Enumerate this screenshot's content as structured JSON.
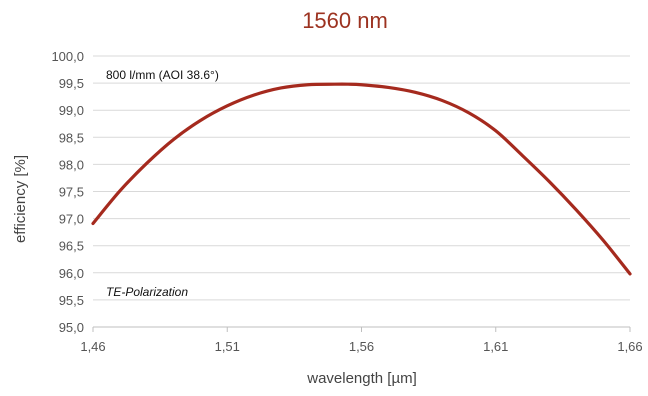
{
  "chart_data": {
    "type": "line",
    "title": "1560 nm",
    "xlabel": "wavelength [µm]",
    "ylabel": "efficiency [%]",
    "annotations": [
      "800 l/mm (AOI 38.6°)",
      "TE-Polarization"
    ],
    "xlim": [
      1.46,
      1.66
    ],
    "ylim": [
      95.0,
      100.0
    ],
    "x_ticks": [
      1.46,
      1.51,
      1.56,
      1.61,
      1.66
    ],
    "x_tick_labels": [
      "1,46",
      "1,51",
      "1,56",
      "1,61",
      "1,66"
    ],
    "y_ticks": [
      95.0,
      95.5,
      96.0,
      96.5,
      97.0,
      97.5,
      98.0,
      98.5,
      99.0,
      99.5,
      100.0
    ],
    "y_tick_labels": [
      "95,0",
      "95,5",
      "96,0",
      "96,5",
      "97,0",
      "97,5",
      "98,0",
      "98,5",
      "99,0",
      "99,5",
      "100,0"
    ],
    "grid": "horizontal",
    "series": [
      {
        "color": "#a52a1e",
        "x": [
          1.46,
          1.47,
          1.48,
          1.49,
          1.5,
          1.51,
          1.52,
          1.53,
          1.54,
          1.55,
          1.555,
          1.56,
          1.57,
          1.58,
          1.59,
          1.6,
          1.61,
          1.62,
          1.63,
          1.64,
          1.65,
          1.66
        ],
        "y": [
          96.91,
          97.51,
          98.02,
          98.46,
          98.81,
          99.08,
          99.28,
          99.41,
          99.47,
          99.48,
          99.48,
          99.47,
          99.42,
          99.33,
          99.18,
          98.95,
          98.62,
          98.16,
          97.68,
          97.16,
          96.6,
          95.98
        ]
      }
    ]
  }
}
